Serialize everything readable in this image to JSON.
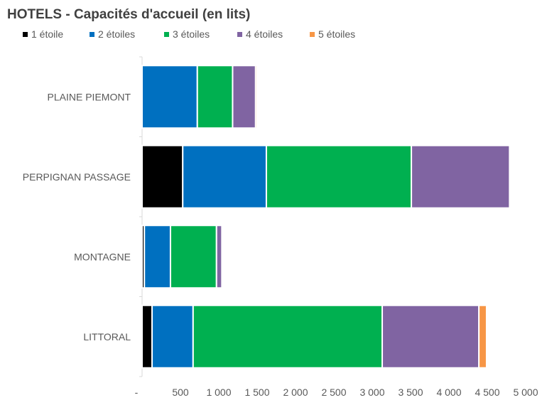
{
  "chart_data": {
    "type": "bar",
    "orientation": "horizontal",
    "stacked": true,
    "title": "HOTELS - Capacités d'accueil (en lits)",
    "categories": [
      "PLAINE PIEMONT",
      "PERPIGNAN PASSAGE",
      "MONTAGNE",
      "LITTORAL"
    ],
    "series": [
      {
        "name": "1 étoile",
        "color": "#000000",
        "values": [
          0,
          530,
          30,
          130
        ]
      },
      {
        "name": "2 étoiles",
        "color": "#0070C0",
        "values": [
          720,
          1090,
          340,
          535
        ]
      },
      {
        "name": "3 étoiles",
        "color": "#00B050",
        "values": [
          460,
          1890,
          600,
          2465
        ]
      },
      {
        "name": "4 étoiles",
        "color": "#8064A2",
        "values": [
          300,
          1280,
          70,
          1260
        ]
      },
      {
        "name": "5 étoiles",
        "color": "#F79646",
        "values": [
          20,
          0,
          0,
          100
        ]
      }
    ],
    "xlim": [
      0,
      5000
    ],
    "xticks": [
      0,
      500,
      1000,
      1500,
      2000,
      2500,
      3000,
      3500,
      4000,
      4500,
      5000
    ],
    "xtick_labels": [
      "-",
      "500",
      "1 000",
      "1 500",
      "2 000",
      "2 500",
      "3 000",
      "3 500",
      "4 000",
      "4 500",
      "5 000"
    ],
    "legend": "top-left",
    "grid": false
  }
}
